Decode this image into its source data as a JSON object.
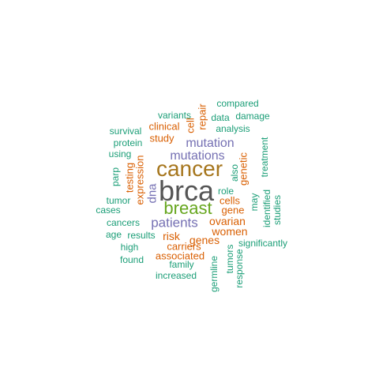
{
  "colors": {
    "gray": "#555555",
    "gold": "#A6761D",
    "green": "#66A61E",
    "purple": "#7570B3",
    "orange": "#D95F02",
    "teal": "#1B9E77"
  },
  "words": [
    {
      "text": "brca",
      "color": "gray"
    },
    {
      "text": "cancer",
      "color": "gold"
    },
    {
      "text": "breast",
      "color": "green"
    },
    {
      "text": "patients",
      "color": "purple"
    },
    {
      "text": "mutation",
      "color": "purple"
    },
    {
      "text": "mutations",
      "color": "purple"
    },
    {
      "text": "dna",
      "color": "purple"
    },
    {
      "text": "ovarian",
      "color": "orange"
    },
    {
      "text": "women",
      "color": "orange"
    },
    {
      "text": "genes",
      "color": "orange"
    },
    {
      "text": "risk",
      "color": "orange"
    },
    {
      "text": "associated",
      "color": "orange"
    },
    {
      "text": "carriers",
      "color": "orange"
    },
    {
      "text": "cells",
      "color": "orange"
    },
    {
      "text": "gene",
      "color": "orange"
    },
    {
      "text": "genetic",
      "color": "orange"
    },
    {
      "text": "study",
      "color": "orange"
    },
    {
      "text": "clinical",
      "color": "orange"
    },
    {
      "text": "expression",
      "color": "orange"
    },
    {
      "text": "testing",
      "color": "orange"
    },
    {
      "text": "cell",
      "color": "orange"
    },
    {
      "text": "repair",
      "color": "orange"
    },
    {
      "text": "role",
      "color": "teal"
    },
    {
      "text": "also",
      "color": "teal"
    },
    {
      "text": "may",
      "color": "teal"
    },
    {
      "text": "identified",
      "color": "teal"
    },
    {
      "text": "studies",
      "color": "teal"
    },
    {
      "text": "treatment",
      "color": "teal"
    },
    {
      "text": "compared",
      "color": "teal"
    },
    {
      "text": "data",
      "color": "teal"
    },
    {
      "text": "damage",
      "color": "teal"
    },
    {
      "text": "variants",
      "color": "teal"
    },
    {
      "text": "analysis",
      "color": "teal"
    },
    {
      "text": "survival",
      "color": "teal"
    },
    {
      "text": "protein",
      "color": "teal"
    },
    {
      "text": "using",
      "color": "teal"
    },
    {
      "text": "parp",
      "color": "teal"
    },
    {
      "text": "tumor",
      "color": "teal"
    },
    {
      "text": "cases",
      "color": "teal"
    },
    {
      "text": "cancers",
      "color": "teal"
    },
    {
      "text": "age",
      "color": "teal"
    },
    {
      "text": "results",
      "color": "teal"
    },
    {
      "text": "high",
      "color": "teal"
    },
    {
      "text": "found",
      "color": "teal"
    },
    {
      "text": "family",
      "color": "teal"
    },
    {
      "text": "increased",
      "color": "teal"
    },
    {
      "text": "significantly",
      "color": "teal"
    },
    {
      "text": "germline",
      "color": "teal"
    },
    {
      "text": "tumors",
      "color": "teal"
    },
    {
      "text": "response",
      "color": "teal"
    }
  ]
}
